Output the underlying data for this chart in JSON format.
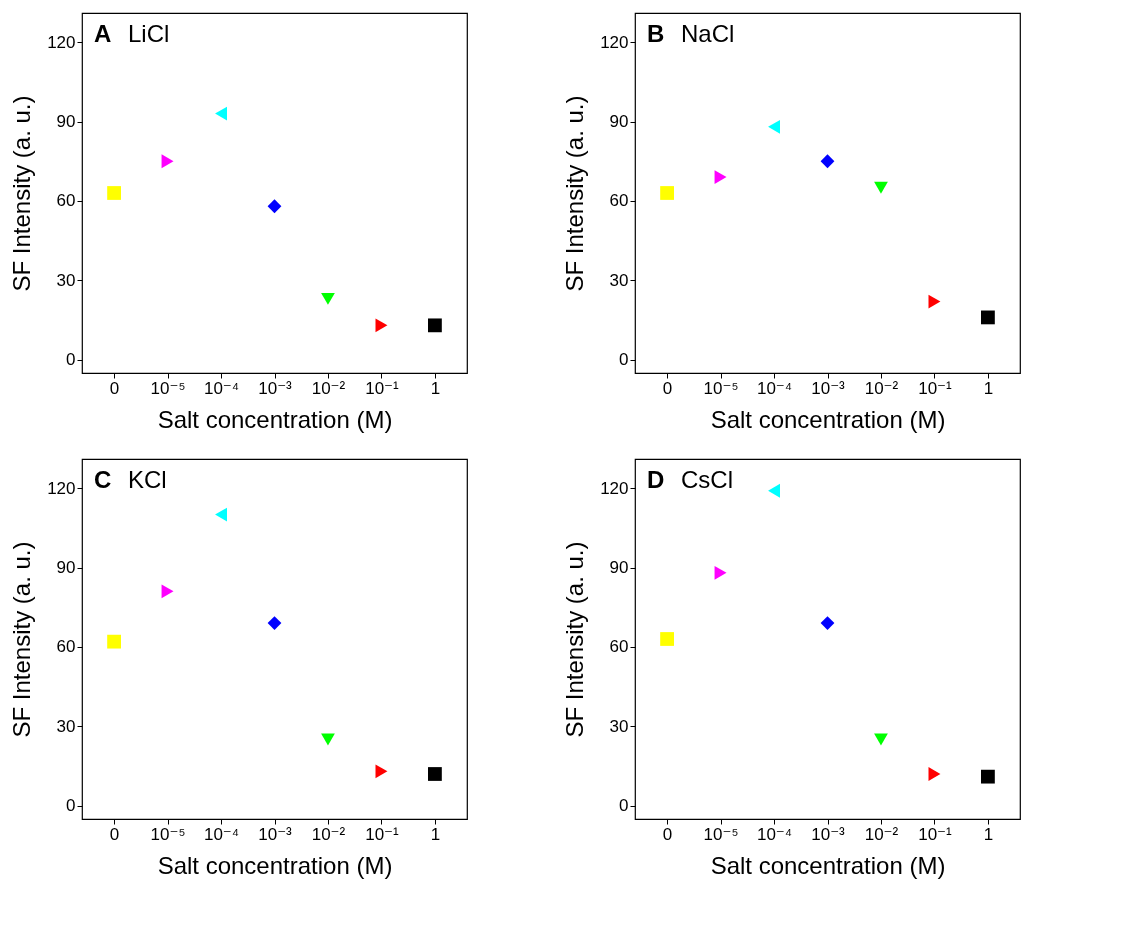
{
  "chart_data": [
    {
      "type": "scatter",
      "title": "LiCl",
      "annotations": [
        "A"
      ],
      "xlabel": "Salt concentration (M)",
      "ylabel": "SF Intensity (a. u.)",
      "categories": [
        "0",
        "10⁻⁵",
        "10⁻⁴",
        "10⁻³",
        "10⁻²",
        "10⁻¹",
        "1"
      ],
      "ylim": [
        -5,
        131
      ],
      "yticks": [
        0,
        30,
        60,
        90,
        120
      ],
      "series": [
        {
          "color": "#ffff00",
          "marker": "square",
          "values": [
            63,
            null,
            null,
            null,
            null,
            null,
            null
          ]
        },
        {
          "color": "#ff00ff",
          "marker": "triangle-right",
          "values": [
            null,
            75,
            null,
            null,
            null,
            null,
            null
          ]
        },
        {
          "color": "#00ffff",
          "marker": "triangle-left",
          "values": [
            null,
            null,
            93,
            null,
            null,
            null,
            null
          ]
        },
        {
          "color": "#0000ff",
          "marker": "diamond",
          "values": [
            null,
            null,
            null,
            58,
            null,
            null,
            null
          ]
        },
        {
          "color": "#00ff00",
          "marker": "triangle-down",
          "values": [
            null,
            null,
            null,
            null,
            23,
            null,
            null
          ]
        },
        {
          "color": "#ff0000",
          "marker": "triangle-right",
          "values": [
            null,
            null,
            null,
            null,
            null,
            13,
            null
          ]
        },
        {
          "color": "#000000",
          "marker": "square",
          "values": [
            null,
            null,
            null,
            null,
            null,
            null,
            13
          ]
        }
      ]
    },
    {
      "type": "scatter",
      "title": "NaCl",
      "annotations": [
        "B"
      ],
      "xlabel": "Salt concentration (M)",
      "ylabel": "SF Intensity (a. u.)",
      "categories": [
        "0",
        "10⁻⁵",
        "10⁻⁴",
        "10⁻³",
        "10⁻²",
        "10⁻¹",
        "1"
      ],
      "ylim": [
        -5,
        131
      ],
      "yticks": [
        0,
        30,
        60,
        90,
        120
      ],
      "series": [
        {
          "color": "#ffff00",
          "marker": "square",
          "values": [
            63,
            null,
            null,
            null,
            null,
            null,
            null
          ]
        },
        {
          "color": "#ff00ff",
          "marker": "triangle-right",
          "values": [
            null,
            69,
            null,
            null,
            null,
            null,
            null
          ]
        },
        {
          "color": "#00ffff",
          "marker": "triangle-left",
          "values": [
            null,
            null,
            88,
            null,
            null,
            null,
            null
          ]
        },
        {
          "color": "#0000ff",
          "marker": "diamond",
          "values": [
            null,
            null,
            null,
            75,
            null,
            null,
            null
          ]
        },
        {
          "color": "#00ff00",
          "marker": "triangle-down",
          "values": [
            null,
            null,
            null,
            null,
            65,
            null,
            null
          ]
        },
        {
          "color": "#ff0000",
          "marker": "triangle-right",
          "values": [
            null,
            null,
            null,
            null,
            null,
            22,
            null
          ]
        },
        {
          "color": "#000000",
          "marker": "square",
          "values": [
            null,
            null,
            null,
            null,
            null,
            null,
            16
          ]
        }
      ]
    },
    {
      "type": "scatter",
      "title": "KCl",
      "annotations": [
        "C"
      ],
      "xlabel": "Salt concentration (M)",
      "ylabel": "SF Intensity (a. u.)",
      "categories": [
        "0",
        "10⁻⁵",
        "10⁻⁴",
        "10⁻³",
        "10⁻²",
        "10⁻¹",
        "1"
      ],
      "ylim": [
        -5,
        131
      ],
      "yticks": [
        0,
        30,
        60,
        90,
        120
      ],
      "series": [
        {
          "color": "#ffff00",
          "marker": "square",
          "values": [
            62,
            null,
            null,
            null,
            null,
            null,
            null
          ]
        },
        {
          "color": "#ff00ff",
          "marker": "triangle-right",
          "values": [
            null,
            81,
            null,
            null,
            null,
            null,
            null
          ]
        },
        {
          "color": "#00ffff",
          "marker": "triangle-left",
          "values": [
            null,
            null,
            110,
            null,
            null,
            null,
            null
          ]
        },
        {
          "color": "#0000ff",
          "marker": "diamond",
          "values": [
            null,
            null,
            null,
            69,
            null,
            null,
            null
          ]
        },
        {
          "color": "#00ff00",
          "marker": "triangle-down",
          "values": [
            null,
            null,
            null,
            null,
            25,
            null,
            null
          ]
        },
        {
          "color": "#ff0000",
          "marker": "triangle-right",
          "values": [
            null,
            null,
            null,
            null,
            null,
            13,
            null
          ]
        },
        {
          "color": "#000000",
          "marker": "square",
          "values": [
            null,
            null,
            null,
            null,
            null,
            null,
            12
          ]
        }
      ]
    },
    {
      "type": "scatter",
      "title": "CsCl",
      "annotations": [
        "D"
      ],
      "xlabel": "Salt concentration (M)",
      "ylabel": "SF Intensity (a. u.)",
      "categories": [
        "0",
        "10⁻⁵",
        "10⁻⁴",
        "10⁻³",
        "10⁻²",
        "10⁻¹",
        "1"
      ],
      "ylim": [
        -5,
        131
      ],
      "yticks": [
        0,
        30,
        60,
        90,
        120
      ],
      "series": [
        {
          "color": "#ffff00",
          "marker": "square",
          "values": [
            63,
            null,
            null,
            null,
            null,
            null,
            null
          ]
        },
        {
          "color": "#ff00ff",
          "marker": "triangle-right",
          "values": [
            null,
            88,
            null,
            null,
            null,
            null,
            null
          ]
        },
        {
          "color": "#00ffff",
          "marker": "triangle-left",
          "values": [
            null,
            null,
            119,
            null,
            null,
            null,
            null
          ]
        },
        {
          "color": "#0000ff",
          "marker": "diamond",
          "values": [
            null,
            null,
            null,
            69,
            null,
            null,
            null
          ]
        },
        {
          "color": "#00ff00",
          "marker": "triangle-down",
          "values": [
            null,
            null,
            null,
            null,
            25,
            null,
            null
          ]
        },
        {
          "color": "#ff0000",
          "marker": "triangle-right",
          "values": [
            null,
            null,
            null,
            null,
            null,
            12,
            null
          ]
        },
        {
          "color": "#000000",
          "marker": "square",
          "values": [
            null,
            null,
            null,
            null,
            null,
            null,
            11
          ]
        }
      ]
    }
  ]
}
